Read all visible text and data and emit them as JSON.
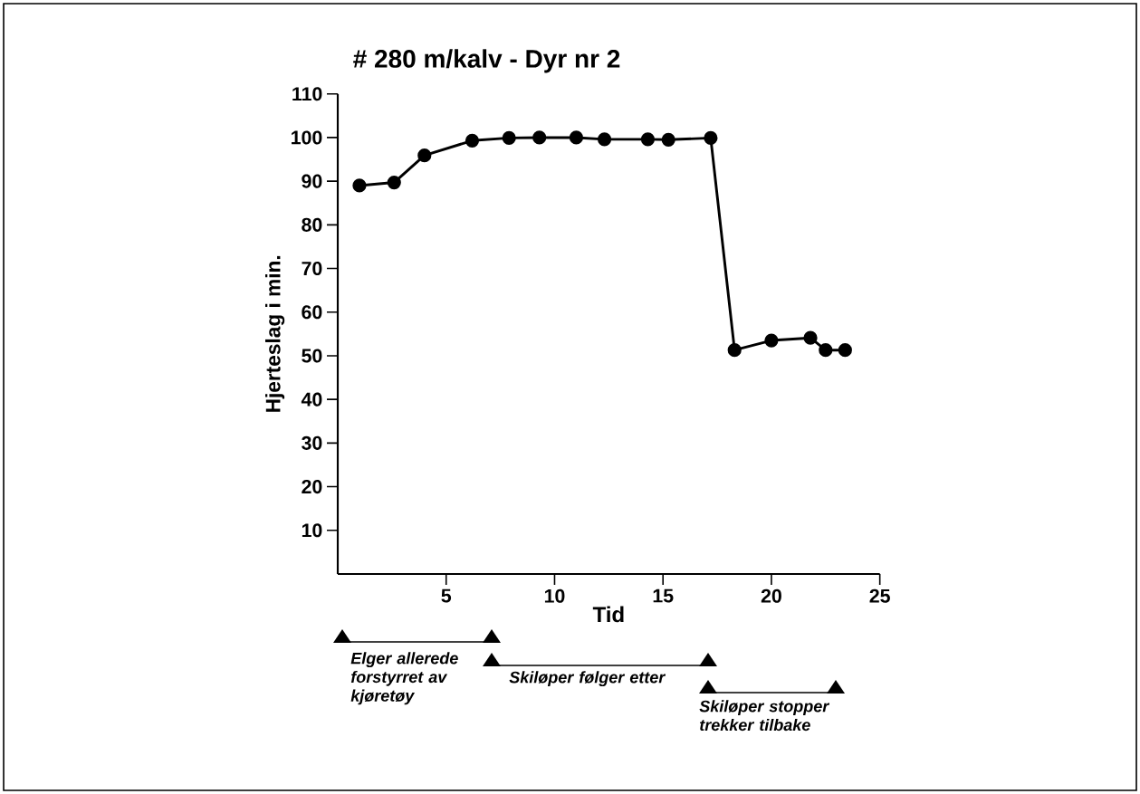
{
  "chart_data": {
    "type": "line",
    "title": "# 280 m/kalv - Dyr nr 2",
    "xlabel": "Tid",
    "ylabel": "Hjerteslag i min.",
    "x": [
      1.0,
      2.6,
      4.0,
      6.2,
      7.9,
      9.3,
      11.0,
      12.3,
      14.3,
      15.25,
      17.2,
      18.3,
      20.0,
      21.8,
      22.5,
      23.4
    ],
    "values": [
      89,
      89.7,
      95.9,
      99.3,
      99.9,
      100,
      100,
      99.6,
      99.6,
      99.5,
      99.9,
      51.3,
      53.5,
      54.1,
      51.3,
      51.3
    ],
    "color": "#000000",
    "marker": "circle",
    "line_style": "solid",
    "xlim": [
      0,
      25
    ],
    "ylim": [
      0,
      110
    ],
    "xticks": [
      5,
      10,
      15,
      20,
      25
    ],
    "yticks": [
      10,
      20,
      30,
      40,
      50,
      60,
      70,
      80,
      90,
      100,
      110
    ],
    "annotations": [
      "Elger allerede forstyrret av kjøretøy",
      "Skiløper følger etter",
      "Skiløper stopper trekker tilbake"
    ]
  }
}
